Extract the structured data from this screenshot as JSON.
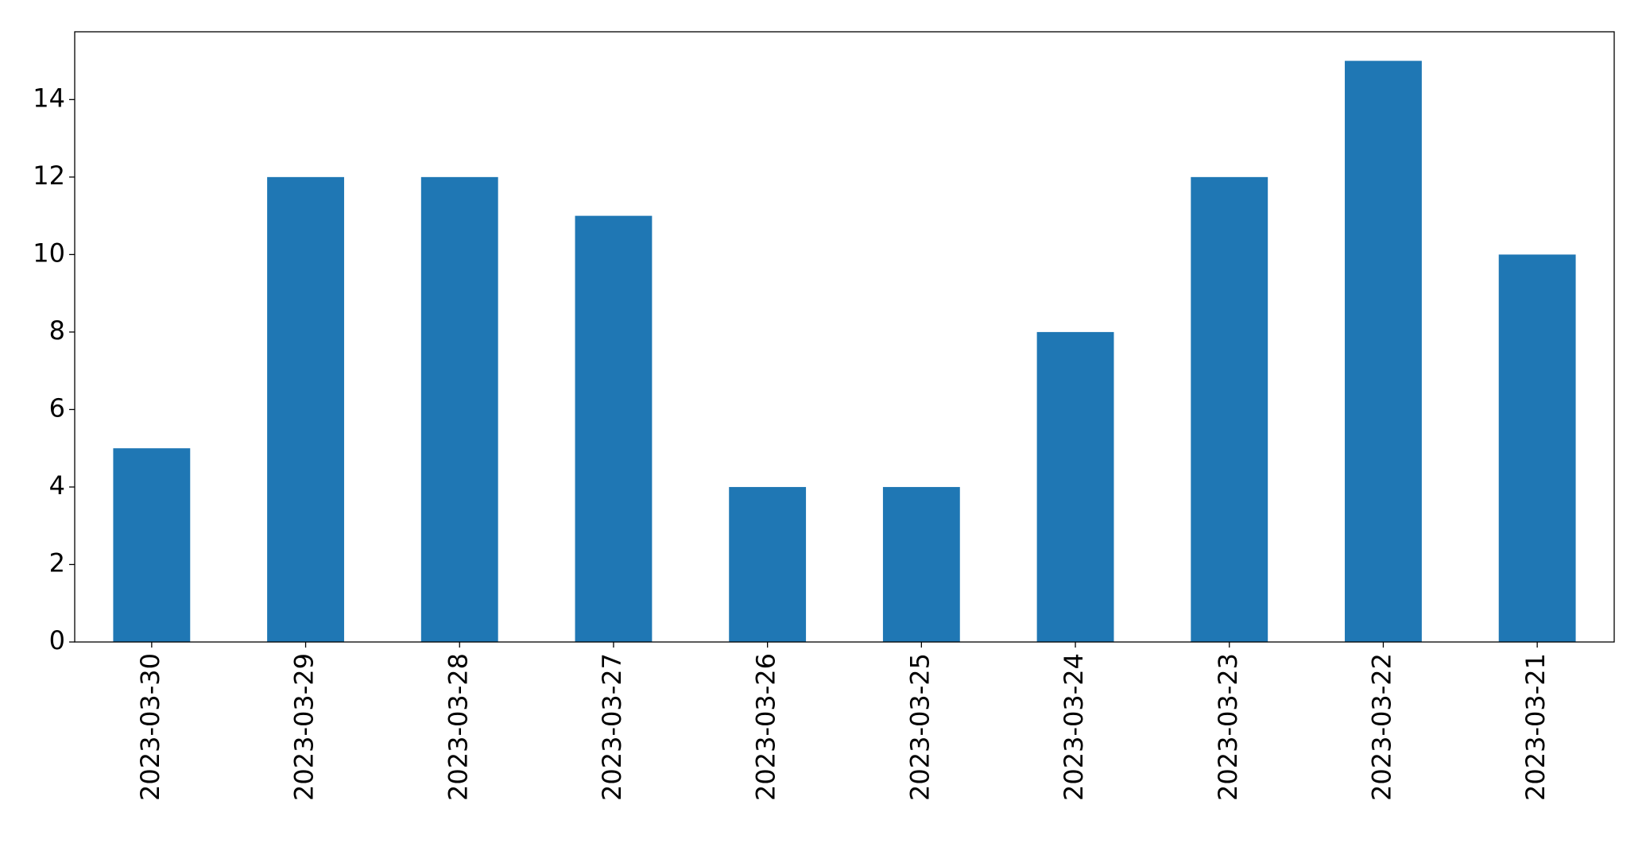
{
  "chart_data": {
    "type": "bar",
    "categories": [
      "2023-03-30",
      "2023-03-29",
      "2023-03-28",
      "2023-03-27",
      "2023-03-26",
      "2023-03-25",
      "2023-03-24",
      "2023-03-23",
      "2023-03-22",
      "2023-03-21"
    ],
    "values": [
      5,
      12,
      12,
      11,
      4,
      4,
      8,
      12,
      15,
      10
    ],
    "color": "#1f77b4",
    "ylim": [
      0,
      15.75
    ],
    "yticks": [
      0,
      2,
      4,
      6,
      8,
      10,
      12,
      14
    ],
    "grid": false
  }
}
